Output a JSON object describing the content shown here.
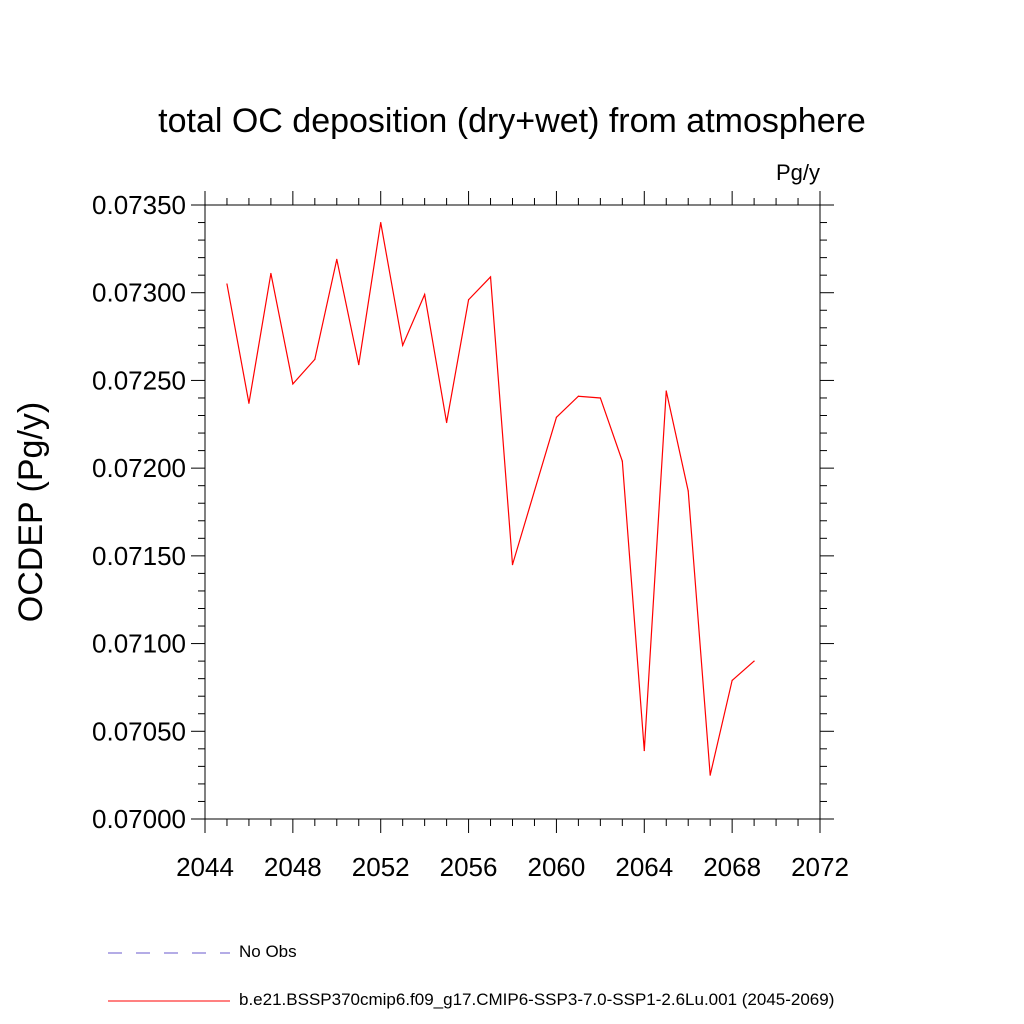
{
  "chart_data": {
    "type": "line",
    "title": "total OC deposition (dry+wet) from atmosphere",
    "units_label": "Pg/y",
    "xlabel": "",
    "ylabel": "OCDEP  (Pg/y)",
    "xlim": [
      2044,
      2072
    ],
    "ylim": [
      0.07,
      0.0735
    ],
    "x_ticks": [
      "2044",
      "2048",
      "2052",
      "2056",
      "2060",
      "2064",
      "2068",
      "2072"
    ],
    "y_ticks": [
      "0.07000",
      "0.07050",
      "0.07100",
      "0.07150",
      "0.07200",
      "0.07250",
      "0.07300",
      "0.07350"
    ],
    "x_tick_values": [
      2044,
      2048,
      2052,
      2056,
      2060,
      2064,
      2068,
      2072
    ],
    "y_tick_values": [
      0.07,
      0.0705,
      0.071,
      0.0715,
      0.072,
      0.0725,
      0.073,
      0.0735
    ],
    "grid": false,
    "series": [
      {
        "name": "b.e21.BSSP370cmip6.f09_g17.CMIP6-SSP3-7.0-SSP1-2.6Lu.001 (2045-2069)",
        "color": "#ff0000",
        "x": [
          2045,
          2046,
          2047,
          2048,
          2049,
          2050,
          2051,
          2052,
          2053,
          2054,
          2055,
          2056,
          2057,
          2058,
          2059,
          2060,
          2061,
          2062,
          2063,
          2064,
          2065,
          2066,
          2067,
          2068,
          2069
        ],
        "values": [
          0.07305,
          0.07237,
          0.07311,
          0.07248,
          0.07262,
          0.07319,
          0.07259,
          0.0734,
          0.0727,
          0.07299,
          0.07226,
          0.07296,
          0.07309,
          0.07145,
          0.07187,
          0.07229,
          0.07241,
          0.0724,
          0.07204,
          0.07039,
          0.07244,
          0.07187,
          0.07025,
          0.07079,
          0.0709
        ]
      }
    ],
    "legend": [
      {
        "label": "No Obs",
        "color": "#6a5acd",
        "style": "dashed"
      },
      {
        "label": "b.e21.BSSP370cmip6.f09_g17.CMIP6-SSP3-7.0-SSP1-2.6Lu.001 (2045-2069)",
        "color": "#ff0000",
        "style": "solid"
      }
    ],
    "legend_position": "bottom-left"
  }
}
